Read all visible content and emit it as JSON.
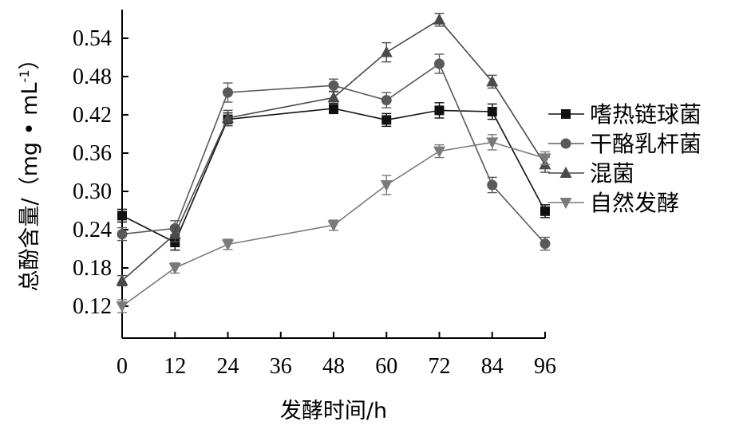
{
  "chart_data": {
    "type": "line",
    "title": "",
    "xlabel": "发酵时间/h",
    "ylabel": "总酚含量/（mg • mL",
    "ylabel_sup": "-1",
    "ylabel_close": "）",
    "x": [
      0,
      12,
      24,
      36,
      48,
      60,
      72,
      84,
      96
    ],
    "x_ticks": [
      "0",
      "12",
      "24",
      "36",
      "48",
      "60",
      "72",
      "84",
      "96"
    ],
    "y_ticks": [
      "0.12",
      "0.18",
      "0.24",
      "0.30",
      "0.36",
      "0.42",
      "0.48",
      "0.54"
    ],
    "y_tick_values": [
      0.12,
      0.18,
      0.24,
      0.3,
      0.36,
      0.42,
      0.48,
      0.54
    ],
    "xlim": [
      0,
      96
    ],
    "ylim": [
      0.07,
      0.585
    ],
    "grid": false,
    "legend_position": "right",
    "series": [
      {
        "name": "嗜热链球菌",
        "marker": "square",
        "color": "#111111",
        "x": [
          0,
          12,
          24,
          48,
          60,
          72,
          84,
          96
        ],
        "values": [
          0.262,
          0.22,
          0.413,
          0.43,
          0.412,
          0.427,
          0.425,
          0.269
        ],
        "errors": [
          0.01,
          0.012,
          0.01,
          0.008,
          0.01,
          0.012,
          0.012,
          0.01
        ]
      },
      {
        "name": "干酪乳杆菌",
        "marker": "circle",
        "color": "#5a5a5a",
        "x": [
          0,
          12,
          24,
          48,
          60,
          72,
          84,
          96
        ],
        "values": [
          0.233,
          0.242,
          0.455,
          0.466,
          0.443,
          0.5,
          0.31,
          0.218
        ],
        "errors": [
          0.01,
          0.012,
          0.015,
          0.01,
          0.012,
          0.015,
          0.012,
          0.01
        ]
      },
      {
        "name": "混菌",
        "marker": "triangle-up",
        "color": "#4a4a4a",
        "x": [
          0,
          12,
          24,
          48,
          60,
          72,
          84,
          96
        ],
        "values": [
          0.16,
          0.233,
          0.415,
          0.447,
          0.518,
          0.569,
          0.472,
          0.342
        ],
        "errors": [
          0.008,
          0.012,
          0.012,
          0.01,
          0.015,
          0.01,
          0.01,
          0.012
        ]
      },
      {
        "name": "自然发酵",
        "marker": "triangle-down",
        "color": "#7a7a7a",
        "x": [
          0,
          12,
          24,
          48,
          60,
          72,
          84,
          96
        ],
        "values": [
          0.12,
          0.18,
          0.217,
          0.247,
          0.31,
          0.363,
          0.377,
          0.352
        ],
        "errors": [
          0.01,
          0.008,
          0.008,
          0.008,
          0.015,
          0.01,
          0.012,
          0.01
        ]
      }
    ]
  }
}
